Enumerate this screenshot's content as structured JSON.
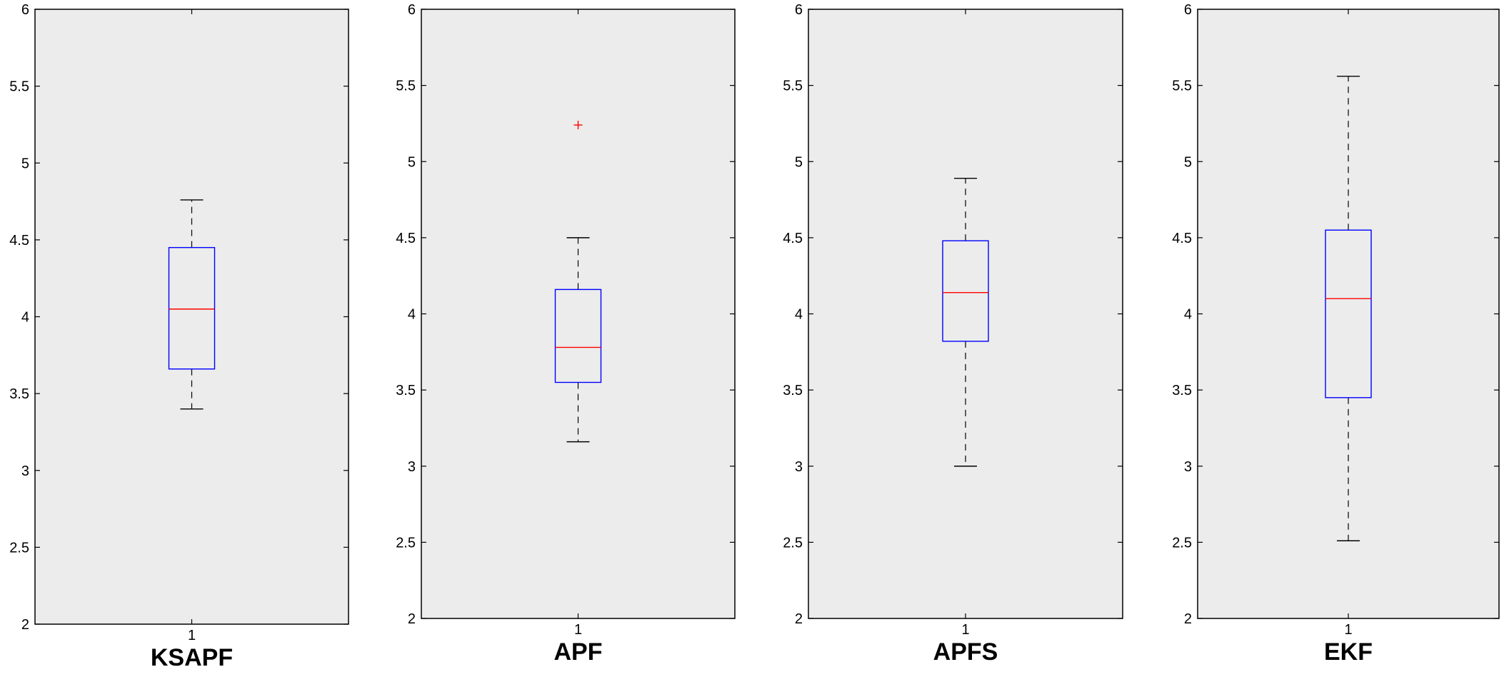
{
  "chart_data": [
    {
      "type": "box",
      "xlabel": "KSAPF",
      "categories": [
        "1"
      ],
      "ylim": [
        2,
        6
      ],
      "yticks": [
        "2",
        "2.5",
        "3",
        "3.5",
        "4",
        "4.5",
        "5",
        "5.5",
        "6"
      ],
      "box": {
        "whisker_low": 3.4,
        "q1": 3.66,
        "median": 4.05,
        "q3": 4.45,
        "whisker_high": 4.76
      },
      "outliers": []
    },
    {
      "type": "box",
      "xlabel": "APF",
      "categories": [
        "1"
      ],
      "ylim": [
        2,
        6
      ],
      "yticks": [
        "2",
        "2.5",
        "3",
        "3.5",
        "4",
        "4.5",
        "5",
        "5.5",
        "6"
      ],
      "box": {
        "whisker_low": 3.16,
        "q1": 3.55,
        "median": 3.78,
        "q3": 4.16,
        "whisker_high": 4.5
      },
      "outliers": [
        5.24
      ]
    },
    {
      "type": "box",
      "xlabel": "APFS",
      "categories": [
        "1"
      ],
      "ylim": [
        2,
        6
      ],
      "yticks": [
        "2",
        "2.5",
        "3",
        "3.5",
        "4",
        "4.5",
        "5",
        "5.5",
        "6"
      ],
      "box": {
        "whisker_low": 3.0,
        "q1": 3.82,
        "median": 4.14,
        "q3": 4.48,
        "whisker_high": 4.89
      },
      "outliers": []
    },
    {
      "type": "box",
      "xlabel": "EKF",
      "categories": [
        "1"
      ],
      "ylim": [
        2,
        6
      ],
      "yticks": [
        "2",
        "2.5",
        "3",
        "3.5",
        "4",
        "4.5",
        "5",
        "5.5",
        "6"
      ],
      "box": {
        "whisker_low": 2.51,
        "q1": 3.45,
        "median": 4.1,
        "q3": 4.55,
        "whisker_high": 5.56
      },
      "outliers": []
    }
  ],
  "colors": {
    "plot_background": "#ececec",
    "box": "#0000ff",
    "median": "#ff0000",
    "outlier": "#ff0000",
    "whisker": "#000000",
    "axes": "#000000"
  }
}
